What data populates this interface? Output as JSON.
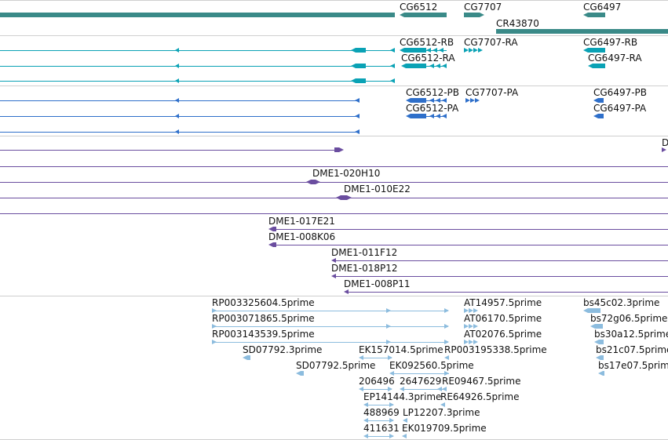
{
  "colors": {
    "gene": "#3a8a88",
    "transcript": "#0aa2b5",
    "protein": "#2e6fca",
    "bac": "#6a4d9f",
    "est": "#8cbcde",
    "divider": "#cfcfcf"
  },
  "genes": {
    "g1": "CG6512",
    "g2": "CG7707",
    "g3": "CG6497",
    "g4": "CR43870"
  },
  "transcripts": {
    "t1": "CG6512-RB",
    "t2": "CG7707-RA",
    "t3": "CG6497-RB",
    "t4": "CG6512-RA",
    "t5": "CG6497-RA"
  },
  "proteins": {
    "p1": "CG6512-PB",
    "p2": "CG7707-PA",
    "p3": "CG6497-PB",
    "p4": "CG6512-PA",
    "p5": "CG6497-PA"
  },
  "bacs": {
    "b0": "D",
    "b1": "DME1-020H10",
    "b2": "DME1-010E22",
    "b3": "DME1-017E21",
    "b4": "DME1-008K06",
    "b5": "DME1-011F12",
    "b6": "DME1-018P12",
    "b7": "DME1-008P11"
  },
  "ests": {
    "e1": "RP003325604.5prime",
    "e2": "AT14957.5prime",
    "e3": "bs45c02.3prime",
    "e4": "RP003071865.5prime",
    "e5": "AT06170.5prime",
    "e6": "bs72g06.5prime",
    "e7": "RP003143539.5prime",
    "e8": "AT02076.5prime",
    "e9": "bs30a12.5prime",
    "e10": "SD07792.3prime",
    "e11": "EK157014.5prime",
    "e12": "RP003195338.5prime",
    "e13": "bs21c07.5prime",
    "e14": "SD07792.5prime",
    "e15": "EK092560.5prime",
    "e16": "bs17e07.5prime",
    "e17": "206496",
    "e18": "2647629",
    "e19": "RE09467.5prime",
    "e20": "EP14144.3prime",
    "e21": "RE64926.5prime",
    "e22": "488969",
    "e23": "LP12207.3prime",
    "e24": "411631",
    "e25": "EK019709.5prime"
  }
}
